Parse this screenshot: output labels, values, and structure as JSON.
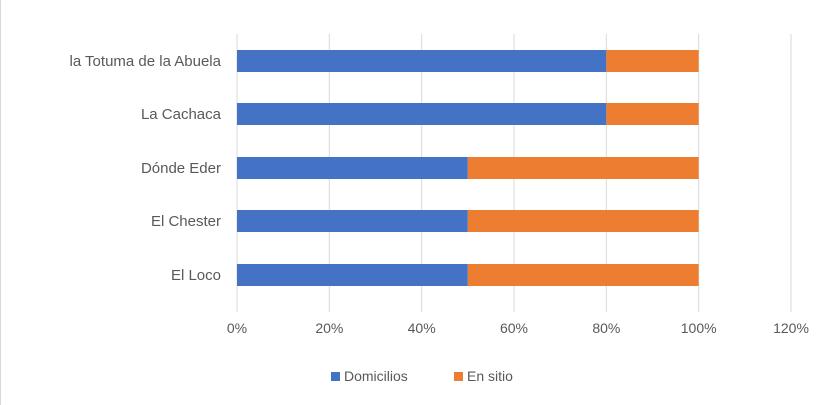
{
  "chart_data": {
    "type": "bar",
    "orientation": "horizontal",
    "stacked": "percent",
    "categories": [
      "la Totuma de la Abuela",
      "La Cachaca",
      "Dónde Eder",
      "El Chester",
      "El Loco"
    ],
    "series": [
      {
        "name": "Domicilios",
        "color": "#4472c4",
        "values": [
          80,
          80,
          50,
          50,
          50
        ]
      },
      {
        "name": "En sitio",
        "color": "#ed7d31",
        "values": [
          20,
          20,
          50,
          50,
          50
        ]
      }
    ],
    "x_ticks": [
      "0%",
      "20%",
      "40%",
      "60%",
      "80%",
      "100%",
      "120%"
    ],
    "xlim": [
      0,
      120
    ],
    "grid": "vertical",
    "legend_position": "bottom"
  }
}
